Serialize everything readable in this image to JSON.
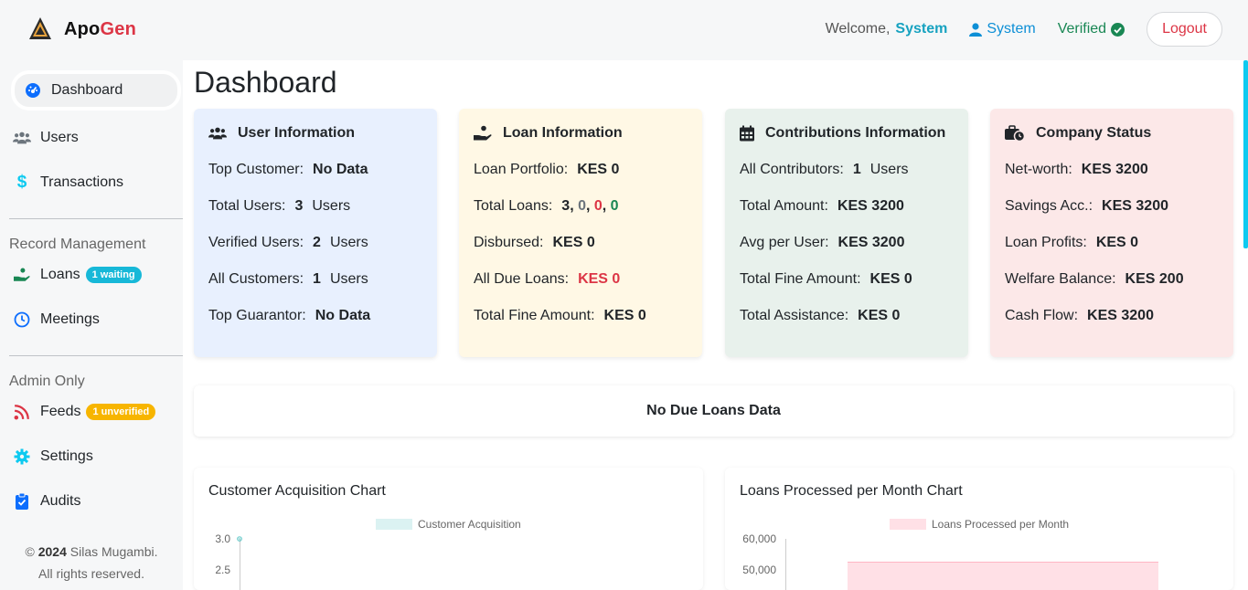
{
  "header": {
    "brand_part1": "Apo",
    "brand_part2": "Gen",
    "welcome_label": "Welcome,",
    "welcome_name": "System",
    "user_link": "System",
    "verified_label": "Verified",
    "logout_label": "Logout"
  },
  "sidebar": {
    "items": [
      {
        "label": "Dashboard",
        "icon": "dashboard-icon"
      },
      {
        "label": "Users",
        "icon": "users-icon"
      },
      {
        "label": "Transactions",
        "icon": "dollar-icon"
      }
    ],
    "record_section_title": "Record Management",
    "record_items": [
      {
        "label": "Loans",
        "icon": "hand-coin-icon",
        "badge": "1 waiting"
      },
      {
        "label": "Meetings",
        "icon": "clock-icon"
      }
    ],
    "admin_section_title": "Admin Only",
    "admin_items": [
      {
        "label": "Feeds",
        "icon": "rss-icon",
        "badge": "1 unverified"
      },
      {
        "label": "Settings",
        "icon": "gear-icon"
      },
      {
        "label": "Audits",
        "icon": "clipboard-check-icon"
      }
    ],
    "footer": {
      "copyright_symbol": "©",
      "year": "2024",
      "author": "Silas Mugambi.",
      "rights": "All rights reserved."
    }
  },
  "main": {
    "page_title": "Dashboard",
    "cards": [
      {
        "title": "User Information",
        "icon": "users-icon",
        "rows": [
          {
            "label": "Top Customer:",
            "value": "No Data",
            "unit": ""
          },
          {
            "label": "Total Users:",
            "value": "3",
            "unit": "Users"
          },
          {
            "label": "Verified Users:",
            "value": "2",
            "unit": "Users"
          },
          {
            "label": "All Customers:",
            "value": "1",
            "unit": "Users"
          },
          {
            "label": "Top Guarantor:",
            "value": "No Data",
            "unit": ""
          }
        ]
      },
      {
        "title": "Loan Information",
        "icon": "hand-coin-icon",
        "rows": [
          {
            "label": "Loan Portfolio:",
            "value": "KES 0"
          },
          {
            "label": "Total Loans:",
            "value_parts": [
              "3",
              "0",
              "0",
              "0"
            ]
          },
          {
            "label": "Disbursed:",
            "value": "KES 0"
          },
          {
            "label": "All Due Loans:",
            "value": "KES 0"
          },
          {
            "label": "Total Fine Amount:",
            "value": "KES 0"
          }
        ]
      },
      {
        "title": "Contributions Information",
        "icon": "calendar-icon",
        "rows": [
          {
            "label": "All Contributors:",
            "value": "1",
            "unit": "Users"
          },
          {
            "label": "Total Amount:",
            "value": "KES 3200"
          },
          {
            "label": "Avg per User:",
            "value": "KES 3200"
          },
          {
            "label": "Total Fine Amount:",
            "value": "KES 0"
          },
          {
            "label": "Total Assistance:",
            "value": "KES 0"
          }
        ]
      },
      {
        "title": "Company Status",
        "icon": "briefcase-clock-icon",
        "rows": [
          {
            "label": "Net-worth:",
            "value": "KES 3200"
          },
          {
            "label": "Savings Acc.:",
            "value": "KES 3200"
          },
          {
            "label": "Loan Profits:",
            "value": "KES 0"
          },
          {
            "label": "Welfare Balance:",
            "value": "KES 200"
          },
          {
            "label": "Cash Flow:",
            "value": "KES 3200"
          }
        ]
      }
    ],
    "no_due_loans": "No Due Loans Data",
    "colors": {
      "danger": "#dc3545",
      "success": "#198754",
      "info": "#17a2c0"
    }
  },
  "chart_data": [
    {
      "type": "line",
      "title": "Customer Acquisition Chart",
      "legend": [
        "Customer Acquisition"
      ],
      "y_ticks": [
        "3.0",
        "2.5"
      ],
      "series": [
        {
          "name": "Customer Acquisition",
          "color": "#4bc0c0"
        }
      ]
    },
    {
      "type": "bar",
      "title": "Loans Processed per Month Chart",
      "legend": [
        "Loans Processed per Month"
      ],
      "y_ticks": [
        "60,000",
        "50,000"
      ],
      "series": [
        {
          "name": "Loans Processed per Month",
          "color": "#ff6384"
        }
      ]
    }
  ]
}
